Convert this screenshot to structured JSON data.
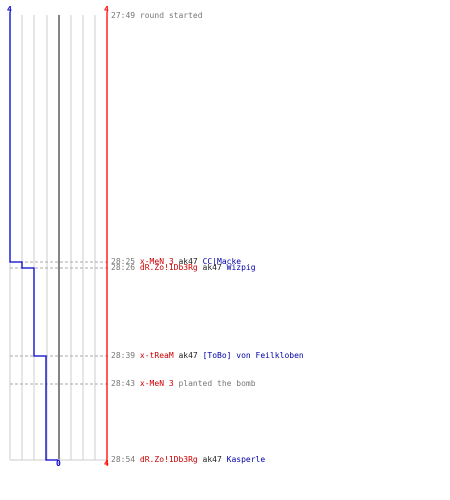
{
  "colors": {
    "team_left": "#0000cc",
    "team_right": "#ff0000",
    "grid": "#cccccc",
    "center_line": "#666666",
    "dashed": "#aaaaaa"
  },
  "graph": {
    "top_left_label": "4",
    "top_right_label": "4",
    "bottom_center_label": "0",
    "bottom_right_label": "4",
    "steps": [
      {
        "time": "27:49",
        "blue_alive": 4
      },
      {
        "time": "28:25",
        "blue_alive": 3
      },
      {
        "time": "28:26",
        "blue_alive": 2
      },
      {
        "time": "28:39",
        "blue_alive": 1
      },
      {
        "time": "28:43",
        "blue_alive": 1
      },
      {
        "time": "28:54",
        "blue_alive": 0
      }
    ]
  },
  "events": [
    {
      "time": "27:49",
      "parts": [
        {
          "text": "round started",
          "style": "grey"
        }
      ]
    },
    {
      "time": "28:25",
      "parts": [
        {
          "text": "x-MeN 3",
          "style": "red"
        },
        {
          "text": "ak47",
          "style": "dark"
        },
        {
          "text": "CC|Macke",
          "style": "blue"
        }
      ]
    },
    {
      "time": "28:26",
      "parts": [
        {
          "text": "dR.Zo!1Db3Rg",
          "style": "red"
        },
        {
          "text": "ak47",
          "style": "dark"
        },
        {
          "text": "Wizpig",
          "style": "blue"
        }
      ]
    },
    {
      "time": "28:39",
      "parts": [
        {
          "text": "x-tReaM",
          "style": "red"
        },
        {
          "text": "ak47",
          "style": "dark"
        },
        {
          "text": "[ToBo] von Feilkloben",
          "style": "blue"
        }
      ]
    },
    {
      "time": "28:43",
      "parts": [
        {
          "text": "x-MeN 3",
          "style": "red"
        },
        {
          "text": "planted the bomb",
          "style": "grey"
        }
      ]
    },
    {
      "time": "28:54",
      "parts": [
        {
          "text": "dR.Zo!1Db3Rg",
          "style": "red"
        },
        {
          "text": "ak47",
          "style": "dark"
        },
        {
          "text": "Kasperle",
          "style": "blue"
        }
      ]
    }
  ]
}
